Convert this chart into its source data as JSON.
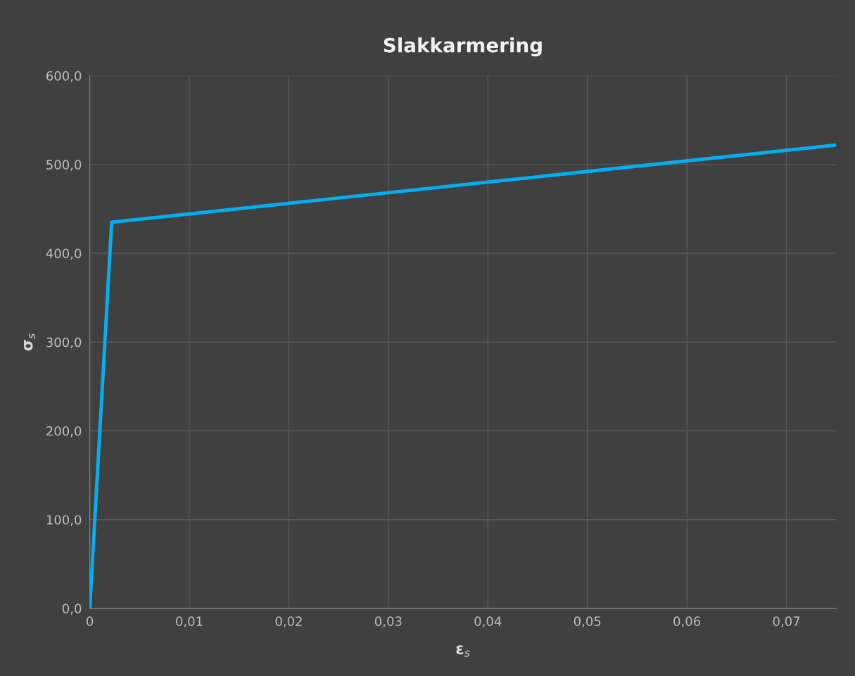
{
  "chart_data": {
    "type": "line",
    "title": "Slakkarmering",
    "xlabel": "ε$_{s}$",
    "ylabel": "σ$_{s}$",
    "series": [
      {
        "color": "#00b0f0",
        "x": [
          0,
          0.0022,
          0.075
        ],
        "values": [
          0,
          435,
          522
        ]
      }
    ],
    "xlim": [
      0,
      0.075
    ],
    "ylim": [
      0,
      600
    ],
    "xticks": [
      0,
      {
        "value": 0.01,
        "label": "0,01"
      },
      {
        "value": 0.02,
        "label": "0,02"
      },
      {
        "value": 0.03,
        "label": "0,03"
      },
      {
        "value": 0.04,
        "label": "0,04"
      },
      {
        "value": 0.05,
        "label": "0,05"
      },
      {
        "value": 0.06,
        "label": "0,06"
      },
      {
        "value": 0.07,
        "label": "0,07"
      }
    ],
    "yticks": [
      {
        "value": 0,
        "label": "0,0"
      },
      {
        "value": 100,
        "label": "100,0"
      },
      {
        "value": 200,
        "label": "200,0"
      },
      {
        "value": 300,
        "label": "300,0"
      },
      {
        "value": 400,
        "label": "400,0"
      },
      {
        "value": 500,
        "label": "500,0"
      },
      {
        "value": 600,
        "label": "600,0"
      }
    ],
    "grid": true,
    "marker": "none",
    "line_style": "solid"
  }
}
